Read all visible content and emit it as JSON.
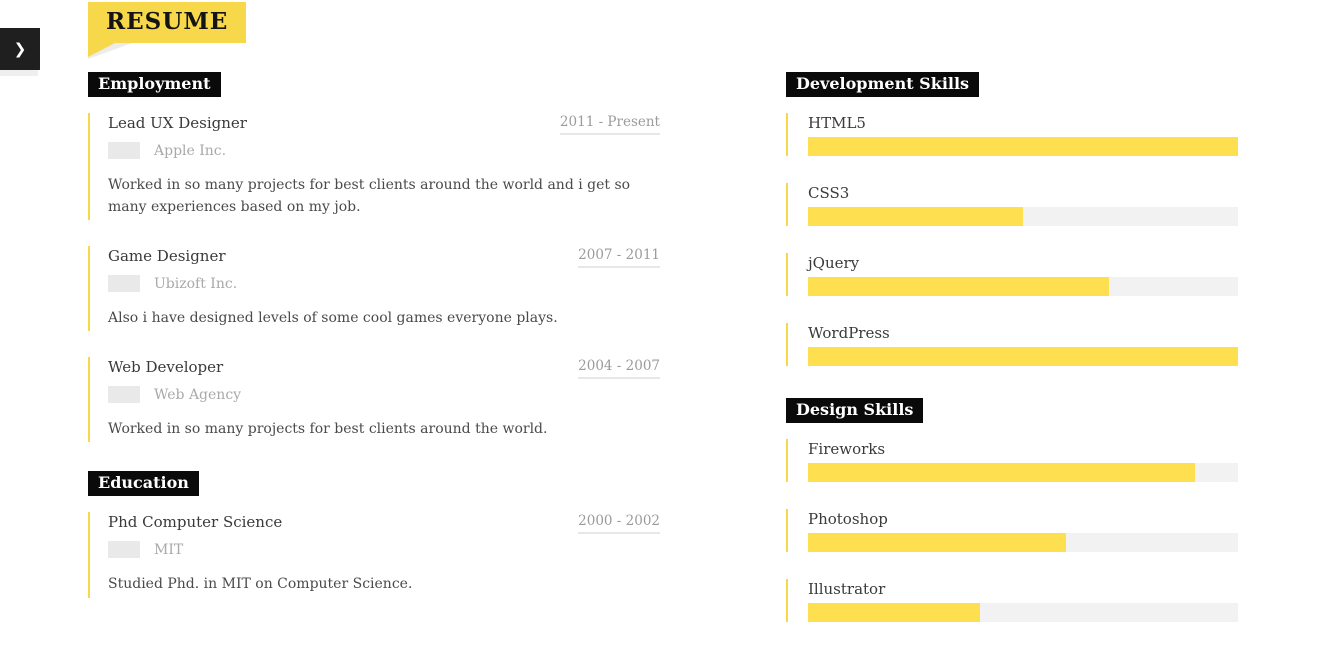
{
  "page_title": "RESUME",
  "side_tab": {
    "chevron_icon": "❯"
  },
  "employment": {
    "header": "Employment",
    "items": [
      {
        "title": "Lead UX Designer",
        "date": "2011 - Present",
        "company": "Apple Inc.",
        "description": "Worked in so many projects for best clients around the world and i get so many experiences based on my job."
      },
      {
        "title": "Game Designer",
        "date": "2007 - 2011",
        "company": "Ubizoft Inc.",
        "description": "Also i have designed levels of some cool games everyone plays."
      },
      {
        "title": "Web Developer",
        "date": "2004 - 2007",
        "company": "Web Agency",
        "description": "Worked in so many projects for best clients around the world."
      }
    ]
  },
  "education": {
    "header": "Education",
    "items": [
      {
        "title": "Phd Computer Science",
        "date": "2000 - 2002",
        "company": "MIT",
        "description": "Studied Phd. in MIT on Computer Science."
      }
    ]
  },
  "development_skills": {
    "header": "Development Skills",
    "items": [
      {
        "label": "HTML5",
        "percent": 100
      },
      {
        "label": "CSS3",
        "percent": 50
      },
      {
        "label": "jQuery",
        "percent": 70
      },
      {
        "label": "WordPress",
        "percent": 100
      }
    ]
  },
  "design_skills": {
    "header": "Design Skills",
    "items": [
      {
        "label": "Fireworks",
        "percent": 90
      },
      {
        "label": "Photoshop",
        "percent": 60
      },
      {
        "label": "Illustrator",
        "percent": 40
      }
    ]
  },
  "colors": {
    "accent_yellow": "#f8d84b",
    "bar_fill_yellow": "#fddf50",
    "bar_track_gray": "#f2f2f2",
    "header_black": "#0a0a0a",
    "muted_gray_text": "#9b9b9b"
  }
}
